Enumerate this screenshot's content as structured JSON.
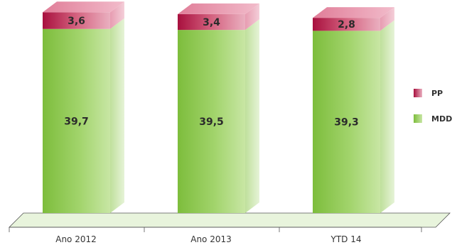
{
  "chart_data": {
    "type": "bar",
    "stacked": true,
    "style": "3d",
    "categories": [
      "Ano 2012",
      "Ano 2013",
      "YTD 14"
    ],
    "series": [
      {
        "name": "MDD",
        "color": "#8cc84b",
        "values": [
          39.7,
          39.5,
          39.3
        ],
        "labels": [
          "39,7",
          "39,5",
          "39,3"
        ]
      },
      {
        "name": "PP",
        "color": "#c8325a",
        "values": [
          3.6,
          3.4,
          2.8
        ],
        "labels": [
          "3,6",
          "3,4",
          "2,8"
        ]
      }
    ],
    "legend": {
      "position": "right",
      "items": [
        "PP",
        "MDD"
      ]
    },
    "grid": false
  }
}
